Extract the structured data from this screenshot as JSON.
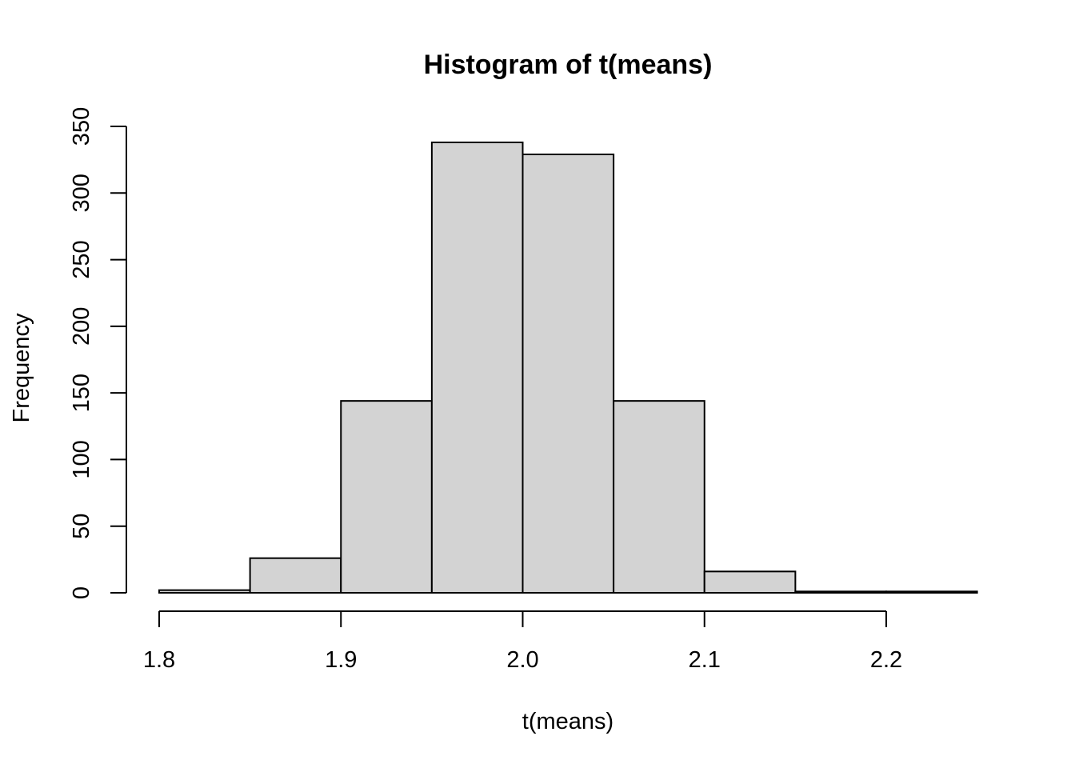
{
  "chart_data": {
    "type": "bar",
    "title": "Histogram of t(means)",
    "xlabel": "t(means)",
    "ylabel": "Frequency",
    "bins": [
      {
        "x0": 1.8,
        "x1": 1.85,
        "count": 2
      },
      {
        "x0": 1.85,
        "x1": 1.9,
        "count": 26
      },
      {
        "x0": 1.9,
        "x1": 1.95,
        "count": 144
      },
      {
        "x0": 1.95,
        "x1": 2.0,
        "count": 338
      },
      {
        "x0": 2.0,
        "x1": 2.05,
        "count": 329
      },
      {
        "x0": 2.05,
        "x1": 2.1,
        "count": 144
      },
      {
        "x0": 2.1,
        "x1": 2.15,
        "count": 16
      },
      {
        "x0": 2.15,
        "x1": 2.2,
        "count": 1
      },
      {
        "x0": 2.2,
        "x1": 2.25,
        "count": 1
      }
    ],
    "xticks": [
      1.8,
      1.9,
      2.0,
      2.1,
      2.2
    ],
    "xtick_labels": [
      "1.8",
      "1.9",
      "2.0",
      "2.1",
      "2.2"
    ],
    "yticks": [
      0,
      50,
      100,
      150,
      200,
      250,
      300,
      350
    ],
    "ytick_labels": [
      "0",
      "50",
      "100",
      "150",
      "200",
      "250",
      "300",
      "350"
    ],
    "xlim": [
      1.8,
      2.25
    ],
    "ylim": [
      0,
      350
    ],
    "grid": false,
    "colors": {
      "bar_fill": "#d3d3d3",
      "bar_stroke": "#000000"
    }
  }
}
